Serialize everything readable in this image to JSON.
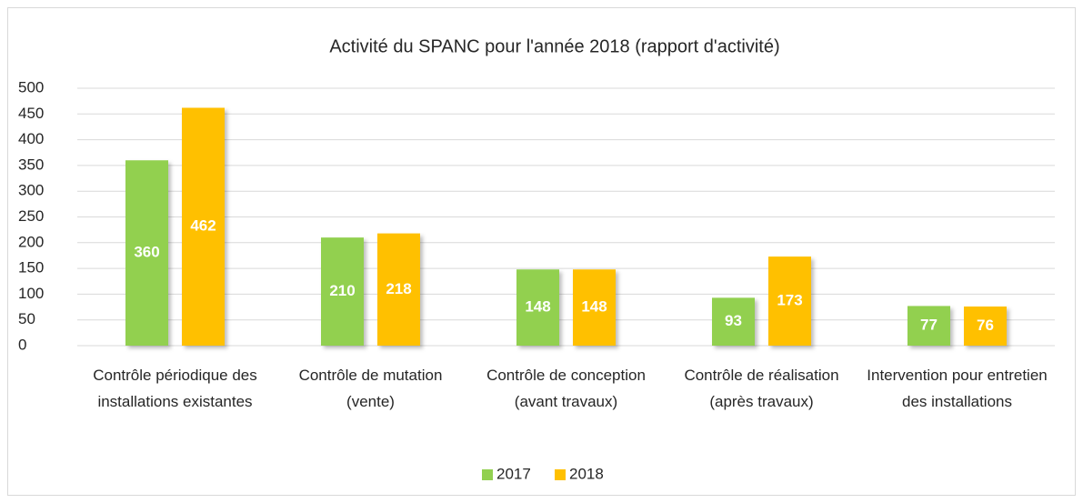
{
  "chart_data": {
    "type": "bar",
    "title": "Activité du SPANC pour l'année 2018 (rapport d'activité)",
    "categories": [
      "Contrôle périodique des installations existantes",
      "Contrôle de mutation (vente)",
      "Contrôle de conception (avant travaux)",
      "Contrôle de réalisation (après travaux)",
      "Intervention pour entretien des installations"
    ],
    "series": [
      {
        "name": "2017",
        "color": "#92d050",
        "values": [
          360,
          210,
          148,
          93,
          77
        ]
      },
      {
        "name": "2018",
        "color": "#ffc000",
        "values": [
          462,
          218,
          148,
          173,
          76
        ]
      }
    ],
    "ylim": [
      0,
      500
    ],
    "yticks": [
      0,
      50,
      100,
      150,
      200,
      250,
      300,
      350,
      400,
      450,
      500
    ],
    "grid": true,
    "legend": "bottom"
  }
}
